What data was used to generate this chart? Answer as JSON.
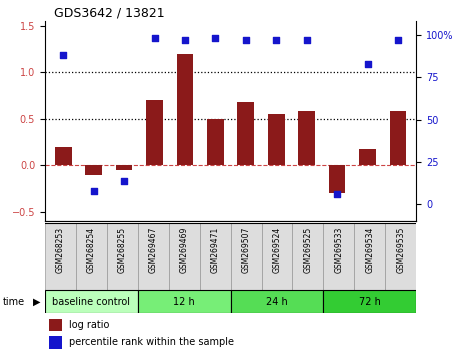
{
  "title": "GDS3642 / 13821",
  "samples": [
    "GSM268253",
    "GSM268254",
    "GSM268255",
    "GSM269467",
    "GSM269469",
    "GSM269471",
    "GSM269507",
    "GSM269524",
    "GSM269525",
    "GSM269533",
    "GSM269534",
    "GSM269535"
  ],
  "log_ratio": [
    0.2,
    -0.1,
    -0.05,
    0.7,
    1.2,
    0.5,
    0.68,
    0.55,
    0.58,
    -0.3,
    0.18,
    0.58
  ],
  "percentile_rank": [
    88,
    8,
    14,
    98,
    97,
    98,
    97,
    97,
    97,
    6,
    83,
    97
  ],
  "bar_color": "#8B1A1A",
  "dot_color": "#1515CC",
  "ylim_left": [
    -0.6,
    1.55
  ],
  "ylim_right": [
    -10,
    108
  ],
  "yticks_left": [
    -0.5,
    0.0,
    0.5,
    1.0,
    1.5
  ],
  "yticks_right": [
    0,
    25,
    50,
    75,
    100
  ],
  "groups": [
    {
      "label": "baseline control",
      "start": 0,
      "end": 3,
      "color": "#BBFFBB"
    },
    {
      "label": "12 h",
      "start": 3,
      "end": 6,
      "color": "#77EE77"
    },
    {
      "label": "24 h",
      "start": 6,
      "end": 9,
      "color": "#55DD55"
    },
    {
      "label": "72 h",
      "start": 9,
      "end": 12,
      "color": "#33CC33"
    }
  ],
  "legend_bar_label": "log ratio",
  "legend_dot_label": "percentile rank within the sample",
  "background_color": "#FFFFFF",
  "sample_box_color": "#DDDDDD",
  "title_fontsize": 9,
  "tick_fontsize": 7,
  "bar_width": 0.55
}
